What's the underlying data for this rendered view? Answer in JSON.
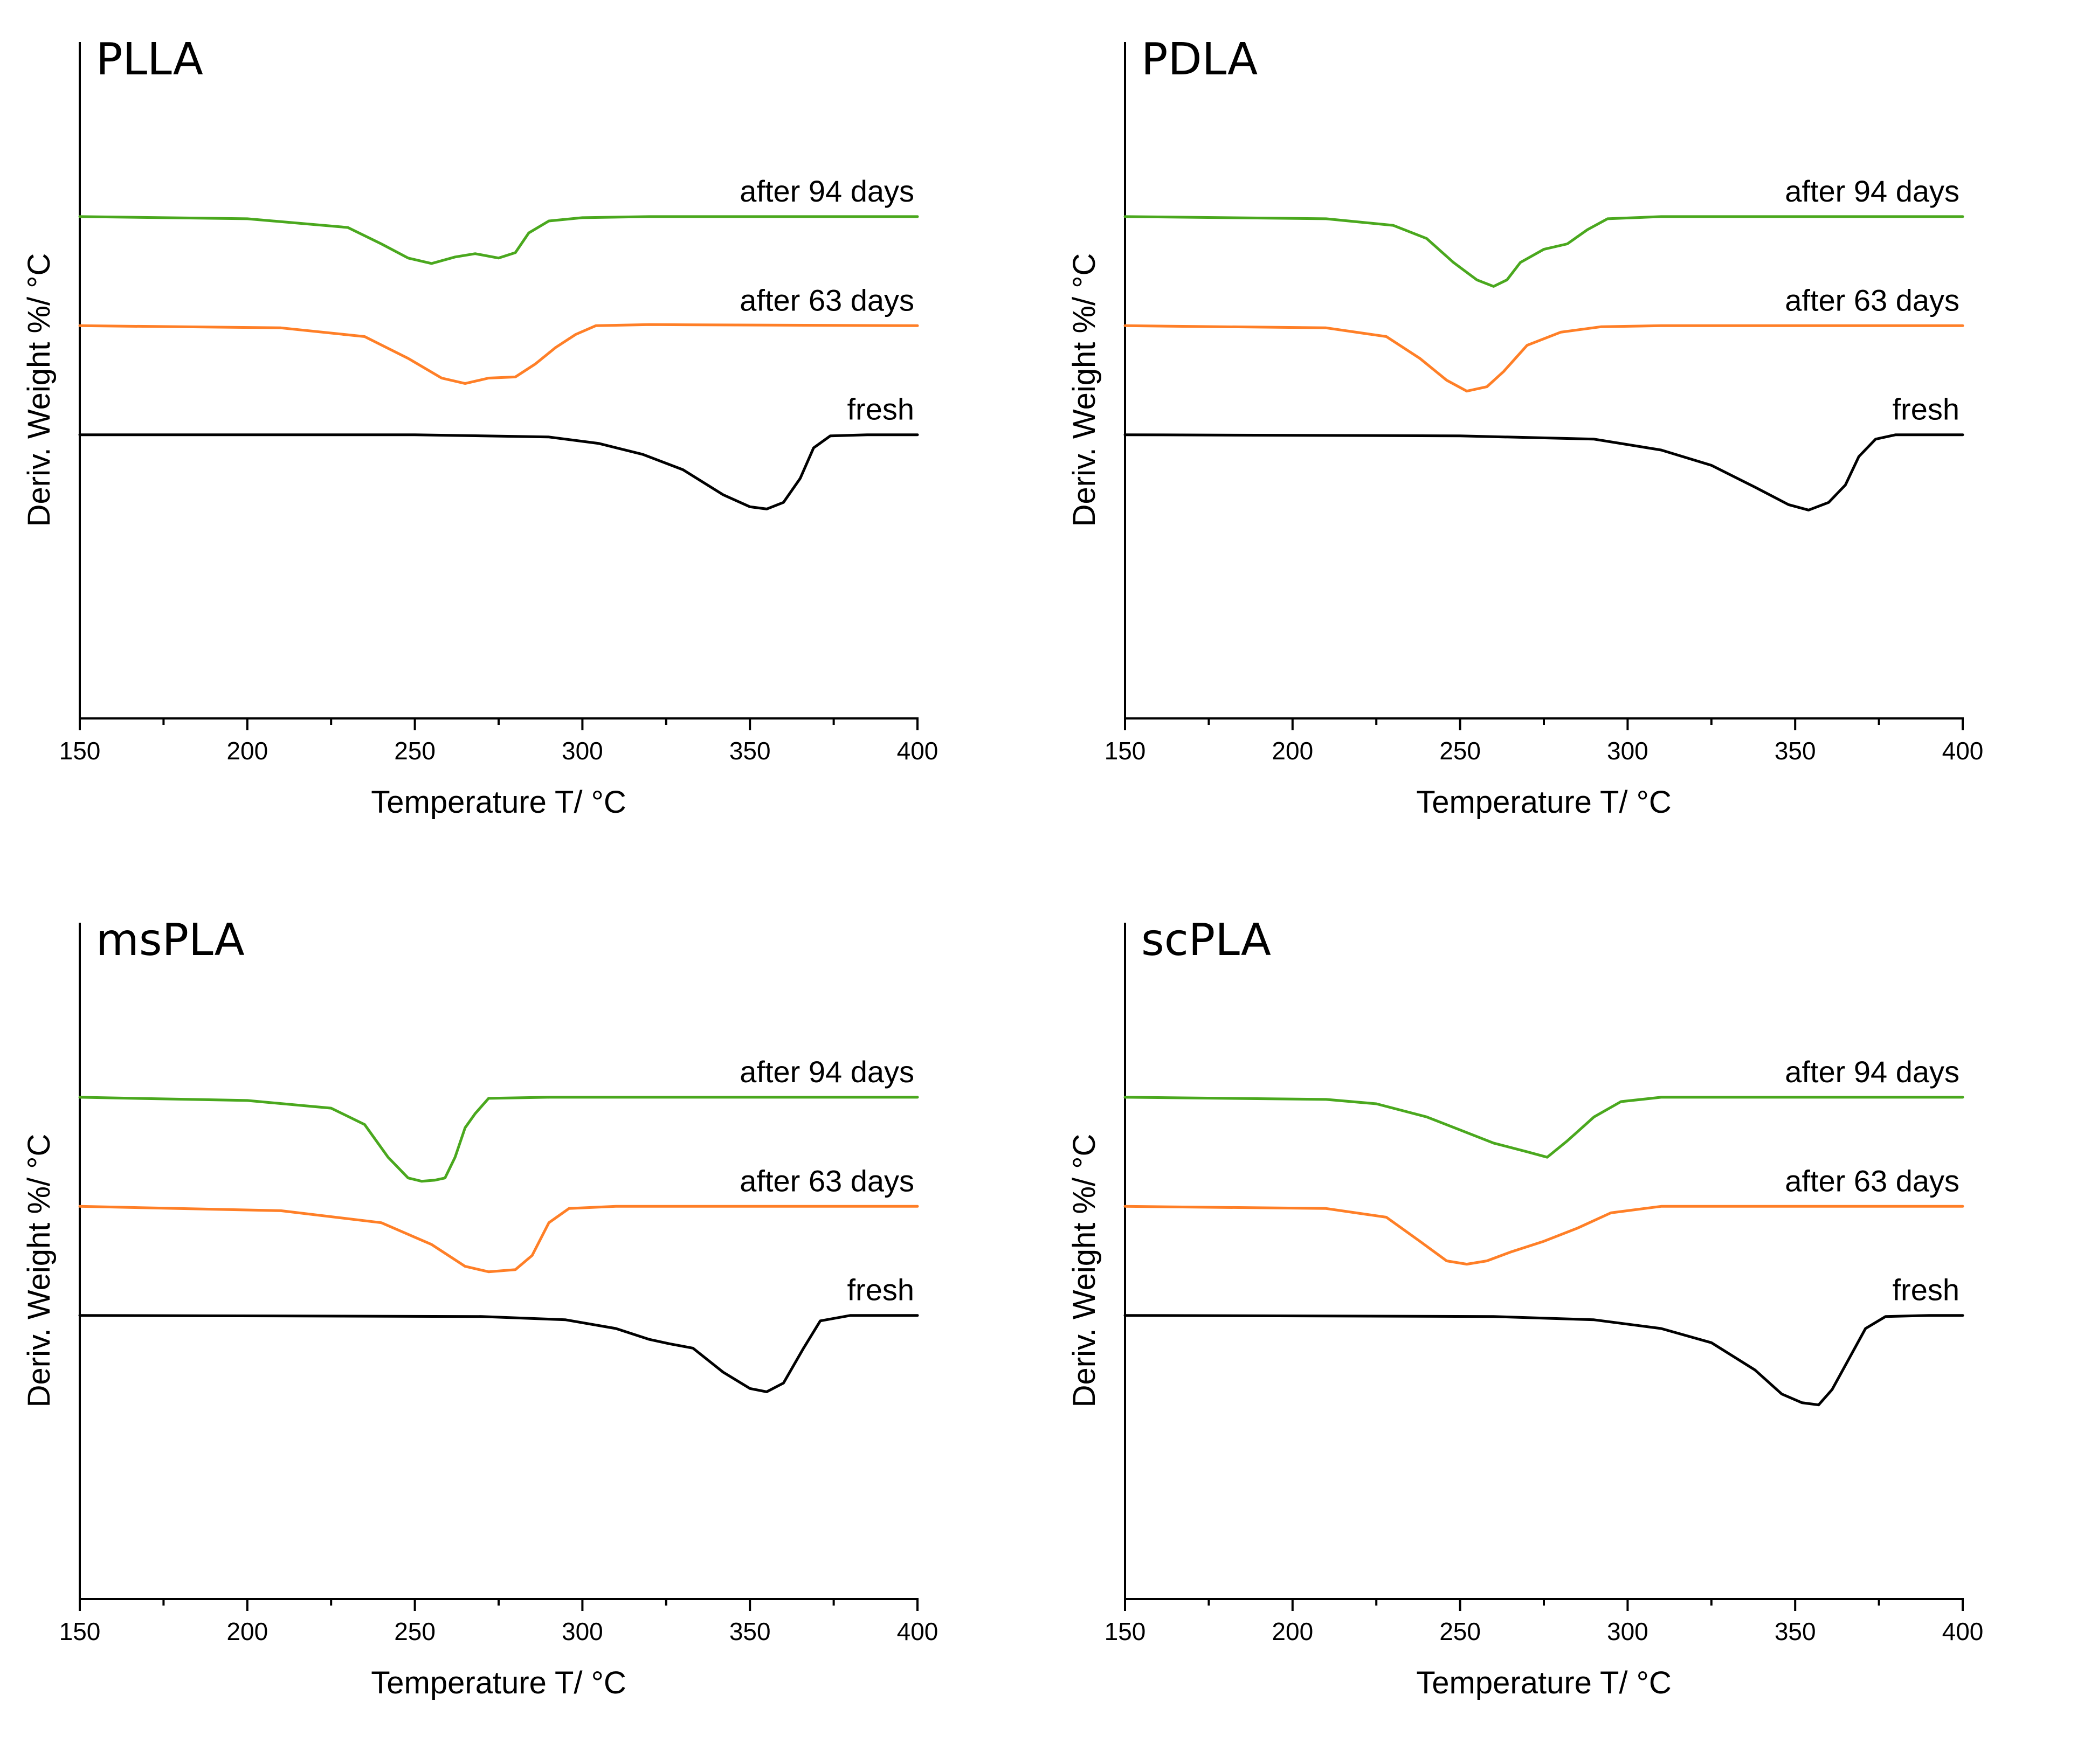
{
  "colors": {
    "fresh": "#000000",
    "after_63_days": "#ff7f27",
    "after_94_days": "#4aa81e",
    "axis": "#000000"
  },
  "chart_data": [
    {
      "type": "line",
      "title": "PLLA",
      "xlabel": "Temperature T/ °C",
      "ylabel": "Deriv. Weight %/ °C",
      "xlim": [
        150,
        400
      ],
      "ylim": [
        -5.6,
        0.6
      ],
      "xticks": [
        "150",
        "200",
        "250",
        "300",
        "350",
        "400"
      ],
      "grid": false,
      "series": [
        {
          "name": "after 94 days",
          "offset": -1.0,
          "points": [
            [
              150,
              0
            ],
            [
              200,
              -0.02
            ],
            [
              230,
              -0.1
            ],
            [
              240,
              -0.25
            ],
            [
              248,
              -0.38
            ],
            [
              255,
              -0.43
            ],
            [
              262,
              -0.37
            ],
            [
              268,
              -0.34
            ],
            [
              275,
              -0.38
            ],
            [
              280,
              -0.33
            ],
            [
              284,
              -0.15
            ],
            [
              290,
              -0.04
            ],
            [
              300,
              -0.01
            ],
            [
              320,
              0
            ],
            [
              400,
              0
            ]
          ]
        },
        {
          "name": "after 63 days",
          "offset": -2.0,
          "points": [
            [
              150,
              0
            ],
            [
              210,
              -0.02
            ],
            [
              235,
              -0.1
            ],
            [
              248,
              -0.3
            ],
            [
              258,
              -0.48
            ],
            [
              265,
              -0.53
            ],
            [
              272,
              -0.48
            ],
            [
              280,
              -0.47
            ],
            [
              286,
              -0.35
            ],
            [
              292,
              -0.2
            ],
            [
              298,
              -0.08
            ],
            [
              304,
              0
            ],
            [
              320,
              0.01
            ],
            [
              400,
              0
            ]
          ]
        },
        {
          "name": "fresh",
          "offset": -3.0,
          "points": [
            [
              150,
              0
            ],
            [
              250,
              0
            ],
            [
              290,
              -0.02
            ],
            [
              305,
              -0.08
            ],
            [
              318,
              -0.18
            ],
            [
              330,
              -0.32
            ],
            [
              342,
              -0.55
            ],
            [
              350,
              -0.66
            ],
            [
              355,
              -0.68
            ],
            [
              360,
              -0.62
            ],
            [
              365,
              -0.4
            ],
            [
              369,
              -0.12
            ],
            [
              374,
              -0.01
            ],
            [
              385,
              0
            ],
            [
              400,
              0
            ]
          ]
        }
      ],
      "labels": [
        "after 94 days",
        "after 63 days",
        "fresh"
      ]
    },
    {
      "type": "line",
      "title": "PDLA",
      "xlabel": "Temperature T/ °C",
      "ylabel": "Deriv. Weight %/ °C",
      "xlim": [
        150,
        400
      ],
      "ylim": [
        -5.6,
        0.6
      ],
      "xticks": [
        "150",
        "200",
        "250",
        "300",
        "350",
        "400"
      ],
      "grid": false,
      "series": [
        {
          "name": "after 94 days",
          "offset": -1.0,
          "points": [
            [
              150,
              0
            ],
            [
              210,
              -0.02
            ],
            [
              230,
              -0.08
            ],
            [
              240,
              -0.2
            ],
            [
              248,
              -0.42
            ],
            [
              255,
              -0.58
            ],
            [
              260,
              -0.64
            ],
            [
              264,
              -0.58
            ],
            [
              268,
              -0.42
            ],
            [
              275,
              -0.3
            ],
            [
              282,
              -0.25
            ],
            [
              288,
              -0.12
            ],
            [
              294,
              -0.02
            ],
            [
              310,
              0
            ],
            [
              400,
              0
            ]
          ]
        },
        {
          "name": "after 63 days",
          "offset": -2.0,
          "points": [
            [
              150,
              0
            ],
            [
              210,
              -0.02
            ],
            [
              228,
              -0.1
            ],
            [
              238,
              -0.3
            ],
            [
              246,
              -0.5
            ],
            [
              252,
              -0.6
            ],
            [
              258,
              -0.56
            ],
            [
              263,
              -0.42
            ],
            [
              270,
              -0.18
            ],
            [
              280,
              -0.06
            ],
            [
              292,
              -0.01
            ],
            [
              310,
              0
            ],
            [
              400,
              0
            ]
          ]
        },
        {
          "name": "fresh",
          "offset": -3.0,
          "points": [
            [
              150,
              0
            ],
            [
              250,
              -0.01
            ],
            [
              290,
              -0.04
            ],
            [
              310,
              -0.14
            ],
            [
              325,
              -0.28
            ],
            [
              338,
              -0.48
            ],
            [
              348,
              -0.64
            ],
            [
              354,
              -0.69
            ],
            [
              360,
              -0.62
            ],
            [
              365,
              -0.46
            ],
            [
              369,
              -0.2
            ],
            [
              374,
              -0.04
            ],
            [
              380,
              0
            ],
            [
              400,
              0
            ]
          ]
        }
      ],
      "labels": [
        "after 94 days",
        "after 63 days",
        "fresh"
      ]
    },
    {
      "type": "line",
      "title": "msPLA",
      "xlabel": "Temperature T/ °C",
      "ylabel": "Deriv. Weight %/ °C",
      "xlim": [
        150,
        400
      ],
      "ylim": [
        -5.6,
        0.6
      ],
      "xticks": [
        "150",
        "200",
        "250",
        "300",
        "350",
        "400"
      ],
      "grid": false,
      "series": [
        {
          "name": "after 94 days",
          "offset": -1.0,
          "points": [
            [
              150,
              0
            ],
            [
              200,
              -0.03
            ],
            [
              225,
              -0.1
            ],
            [
              235,
              -0.25
            ],
            [
              242,
              -0.55
            ],
            [
              248,
              -0.74
            ],
            [
              252,
              -0.77
            ],
            [
              256,
              -0.76
            ],
            [
              259,
              -0.74
            ],
            [
              262,
              -0.55
            ],
            [
              265,
              -0.28
            ],
            [
              268,
              -0.15
            ],
            [
              272,
              -0.01
            ],
            [
              290,
              0
            ],
            [
              400,
              0
            ]
          ]
        },
        {
          "name": "after 63 days",
          "offset": -2.0,
          "points": [
            [
              150,
              0
            ],
            [
              210,
              -0.04
            ],
            [
              240,
              -0.15
            ],
            [
              255,
              -0.35
            ],
            [
              265,
              -0.55
            ],
            [
              272,
              -0.6
            ],
            [
              280,
              -0.58
            ],
            [
              285,
              -0.45
            ],
            [
              290,
              -0.15
            ],
            [
              296,
              -0.02
            ],
            [
              310,
              0
            ],
            [
              400,
              0
            ]
          ]
        },
        {
          "name": "fresh",
          "offset": -3.0,
          "points": [
            [
              150,
              0
            ],
            [
              270,
              -0.01
            ],
            [
              295,
              -0.04
            ],
            [
              310,
              -0.12
            ],
            [
              320,
              -0.22
            ],
            [
              326,
              -0.26
            ],
            [
              333,
              -0.3
            ],
            [
              342,
              -0.52
            ],
            [
              350,
              -0.67
            ],
            [
              355,
              -0.7
            ],
            [
              360,
              -0.62
            ],
            [
              366,
              -0.3
            ],
            [
              371,
              -0.05
            ],
            [
              380,
              0
            ],
            [
              400,
              0
            ]
          ]
        }
      ],
      "labels": [
        "after 94 days",
        "after 63 days",
        "fresh"
      ]
    },
    {
      "type": "line",
      "title": "scPLA",
      "xlabel": "Temperature T/ °C",
      "ylabel": "Deriv. Weight %/ °C",
      "xlim": [
        150,
        400
      ],
      "ylim": [
        -5.6,
        0.6
      ],
      "xticks": [
        "150",
        "200",
        "250",
        "300",
        "350",
        "400"
      ],
      "grid": false,
      "series": [
        {
          "name": "after 94 days",
          "offset": -1.0,
          "points": [
            [
              150,
              0
            ],
            [
              210,
              -0.02
            ],
            [
              225,
              -0.06
            ],
            [
              240,
              -0.18
            ],
            [
              250,
              -0.3
            ],
            [
              260,
              -0.42
            ],
            [
              270,
              -0.5
            ],
            [
              276,
              -0.55
            ],
            [
              282,
              -0.4
            ],
            [
              290,
              -0.18
            ],
            [
              298,
              -0.04
            ],
            [
              310,
              0
            ],
            [
              400,
              0
            ]
          ]
        },
        {
          "name": "after 63 days",
          "offset": -2.0,
          "points": [
            [
              150,
              0
            ],
            [
              210,
              -0.02
            ],
            [
              228,
              -0.1
            ],
            [
              238,
              -0.32
            ],
            [
              246,
              -0.5
            ],
            [
              252,
              -0.53
            ],
            [
              258,
              -0.5
            ],
            [
              265,
              -0.42
            ],
            [
              275,
              -0.32
            ],
            [
              285,
              -0.2
            ],
            [
              295,
              -0.06
            ],
            [
              310,
              0
            ],
            [
              400,
              0
            ]
          ]
        },
        {
          "name": "fresh",
          "offset": -3.0,
          "points": [
            [
              150,
              0
            ],
            [
              260,
              -0.01
            ],
            [
              290,
              -0.04
            ],
            [
              310,
              -0.12
            ],
            [
              325,
              -0.25
            ],
            [
              338,
              -0.5
            ],
            [
              346,
              -0.72
            ],
            [
              352,
              -0.8
            ],
            [
              357,
              -0.82
            ],
            [
              361,
              -0.68
            ],
            [
              366,
              -0.4
            ],
            [
              371,
              -0.12
            ],
            [
              377,
              -0.01
            ],
            [
              390,
              0
            ],
            [
              400,
              0
            ]
          ]
        }
      ],
      "labels": [
        "after 94 days",
        "after 63 days",
        "fresh"
      ]
    }
  ]
}
